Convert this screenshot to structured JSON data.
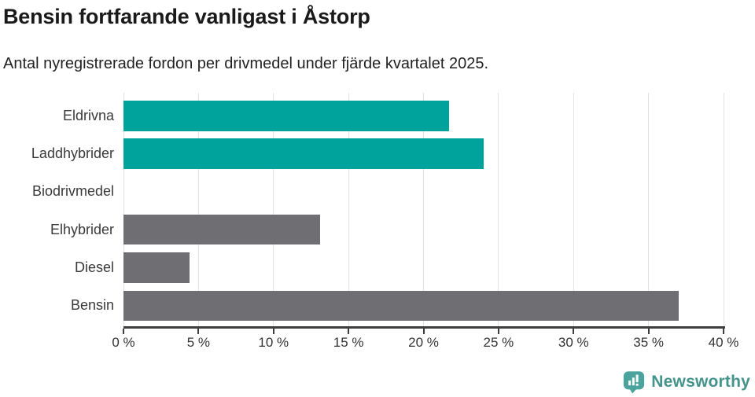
{
  "header": {
    "title": "Bensin fortfarande vanligast i Åstorp",
    "subtitle": "Antal nyregistrerade fordon per drivmedel under fjärde kvartalet 2025."
  },
  "chart_data": {
    "type": "bar",
    "orientation": "horizontal",
    "title": "Bensin fortfarande vanligast i Åstorp",
    "subtitle": "Antal nyregistrerade fordon per drivmedel under fjärde kvartalet 2025.",
    "categories": [
      "Eldrivna",
      "Laddhybrider",
      "Biodrivmedel",
      "Elhybrider",
      "Diesel",
      "Bensin"
    ],
    "values": [
      21.7,
      24.0,
      0,
      13.1,
      4.4,
      37.0
    ],
    "unit": "%",
    "xlim": [
      0,
      40
    ],
    "x_tick_values": [
      0,
      5,
      10,
      15,
      20,
      25,
      30,
      35,
      40
    ],
    "x_ticks": [
      "0 %",
      "5 %",
      "10 %",
      "15 %",
      "20 %",
      "25 %",
      "30 %",
      "35 %",
      "40 %"
    ],
    "bar_colors": [
      "#00a39b",
      "#00a39b",
      "#00a39b",
      "#6e6e73",
      "#6e6e73",
      "#6e6e73"
    ],
    "colors": {
      "teal": "#00a39b",
      "gray": "#6e6e73",
      "gridline": "#e2e2e2",
      "axis": "#3f3f3f",
      "background": "#ffffff"
    },
    "grid": true,
    "legend": false,
    "value_labels": false
  },
  "branding": {
    "logo_text": "Newsworthy",
    "logo_text_color": "#44938d",
    "logo_icon": "newsworthy-speech-bubble-bar-chart-icon",
    "logo_icon_color": "#4aa39c"
  }
}
